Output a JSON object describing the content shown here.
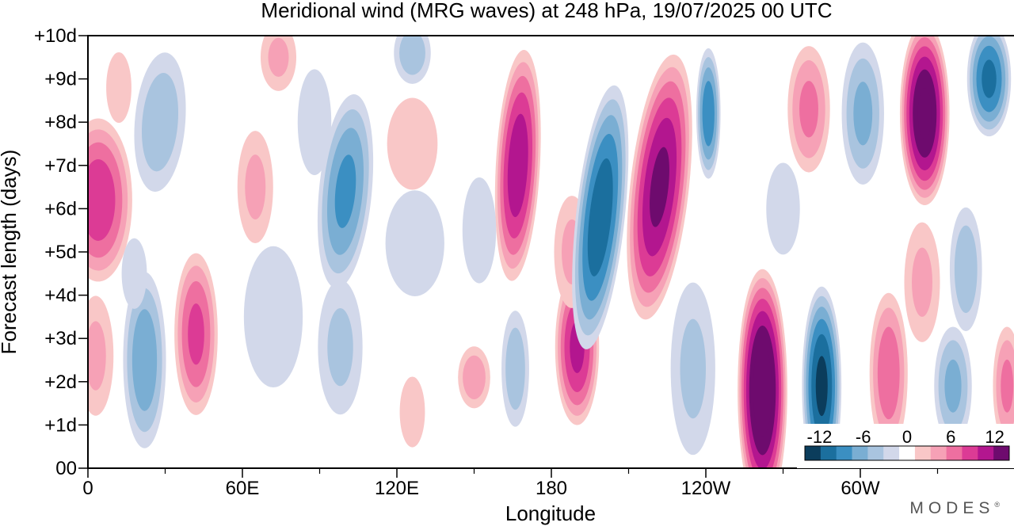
{
  "chart_data": {
    "type": "heatmap",
    "title": "Meridional wind (MRG waves) at  248 hPa,  19/07/2025  00 UTC",
    "xlabel": "Longitude",
    "ylabel": "Forecast length (days)",
    "x_ticks": [
      {
        "lon": 0,
        "label": "0"
      },
      {
        "lon": 60,
        "label": "60E"
      },
      {
        "lon": 120,
        "label": "120E"
      },
      {
        "lon": 180,
        "label": "180"
      },
      {
        "lon": 240,
        "label": "120W"
      },
      {
        "lon": 300,
        "label": "60W"
      }
    ],
    "x_minor_ticks": [
      30,
      90,
      150,
      210,
      270,
      330
    ],
    "xlim": [
      0,
      360
    ],
    "y_ticks": [
      {
        "day": 0,
        "label": "00"
      },
      {
        "day": 1,
        "label": "+1d"
      },
      {
        "day": 2,
        "label": "+2d"
      },
      {
        "day": 3,
        "label": "+3d"
      },
      {
        "day": 4,
        "label": "+4d"
      },
      {
        "day": 5,
        "label": "+5d"
      },
      {
        "day": 6,
        "label": "+6d"
      },
      {
        "day": 7,
        "label": "+7d"
      },
      {
        "day": 8,
        "label": "+8d"
      },
      {
        "day": 9,
        "label": "+9d"
      },
      {
        "day": 10,
        "label": "+10d"
      }
    ],
    "ylim": [
      0,
      10
    ],
    "units": "m/s",
    "colorbar": {
      "levels": [
        -14,
        -12,
        -10,
        -8,
        -6,
        -4,
        -2,
        2,
        4,
        6,
        8,
        10,
        12,
        14
      ],
      "colors": [
        "#0b3d5c",
        "#1b6f9e",
        "#3b8fc2",
        "#7aaed3",
        "#a9c4df",
        "#d2d8ea",
        "#ffffff",
        "#f9c7c7",
        "#f6a1b6",
        "#ee6fa0",
        "#dc3b95",
        "#b3168f",
        "#6e0b6e"
      ],
      "tick_labels": [
        {
          "value": -12,
          "label": "-12"
        },
        {
          "value": -6,
          "label": "-6"
        },
        {
          "value": 0,
          "label": "0"
        },
        {
          "value": 6,
          "label": "6"
        },
        {
          "value": 12,
          "label": "12"
        }
      ]
    },
    "features": [
      {
        "lon": 4,
        "day": 6.2,
        "dlon": 14,
        "dday": 2.0,
        "v": 9,
        "tilt": 0
      },
      {
        "lon": 3,
        "day": 2.6,
        "dlon": 8,
        "dday": 1.6,
        "v": 4,
        "tilt": 0
      },
      {
        "lon": 12,
        "day": 8.8,
        "dlon": 6,
        "dday": 1.0,
        "v": 3,
        "tilt": 0
      },
      {
        "lon": 22,
        "day": 2.5,
        "dlon": 9,
        "dday": 2.2,
        "v": -7,
        "tilt": 0
      },
      {
        "lon": 28,
        "day": 8.0,
        "dlon": 11,
        "dday": 1.8,
        "v": -5,
        "tilt": 4
      },
      {
        "lon": 18,
        "day": 4.5,
        "dlon": 6,
        "dday": 1.0,
        "v": -3,
        "tilt": 0
      },
      {
        "lon": 42,
        "day": 3.1,
        "dlon": 9,
        "dday": 2.0,
        "v": 8,
        "tilt": 0
      },
      {
        "lon": 65,
        "day": 6.5,
        "dlon": 8,
        "dday": 1.5,
        "v": 4,
        "tilt": 0
      },
      {
        "lon": 74,
        "day": 9.5,
        "dlon": 8,
        "dday": 0.9,
        "v": 4,
        "tilt": 0
      },
      {
        "lon": 72,
        "day": 3.5,
        "dlon": 14,
        "dday": 2.0,
        "v": -3,
        "tilt": 0
      },
      {
        "lon": 100,
        "day": 6.4,
        "dlon": 11,
        "dday": 2.4,
        "v": -8,
        "tilt": 5
      },
      {
        "lon": 98,
        "day": 2.8,
        "dlon": 10,
        "dday": 1.8,
        "v": -4,
        "tilt": 0
      },
      {
        "lon": 88,
        "day": 8.0,
        "dlon": 8,
        "dday": 1.5,
        "v": -3,
        "tilt": 0
      },
      {
        "lon": 126,
        "day": 7.5,
        "dlon": 12,
        "dday": 1.3,
        "v": 3,
        "tilt": 0
      },
      {
        "lon": 126,
        "day": 1.3,
        "dlon": 6,
        "dday": 1.0,
        "v": 3,
        "tilt": 0
      },
      {
        "lon": 150,
        "day": 2.1,
        "dlon": 7,
        "dday": 0.8,
        "v": 5,
        "tilt": 0
      },
      {
        "lon": 127,
        "day": 5.2,
        "dlon": 14,
        "dday": 1.5,
        "v": -3,
        "tilt": 0
      },
      {
        "lon": 126,
        "day": 9.6,
        "dlon": 8,
        "dday": 0.8,
        "v": -5,
        "tilt": 0
      },
      {
        "lon": 167,
        "day": 7.0,
        "dlon": 9,
        "dday": 2.8,
        "v": 11,
        "tilt": 3
      },
      {
        "lon": 166,
        "day": 2.3,
        "dlon": 6,
        "dday": 1.5,
        "v": -5,
        "tilt": 0
      },
      {
        "lon": 152,
        "day": 5.5,
        "dlon": 8,
        "dday": 1.5,
        "v": -3,
        "tilt": 0
      },
      {
        "lon": 190,
        "day": 2.8,
        "dlon": 9,
        "dday": 1.9,
        "v": 10,
        "tilt": 0
      },
      {
        "lon": 188,
        "day": 5.0,
        "dlon": 8,
        "dday": 1.5,
        "v": 4,
        "tilt": 0
      },
      {
        "lon": 199,
        "day": 5.8,
        "dlon": 10,
        "dday": 3.2,
        "v": -11,
        "tilt": 6
      },
      {
        "lon": 222,
        "day": 6.5,
        "dlon": 12,
        "dday": 3.2,
        "v": 12,
        "tilt": 6
      },
      {
        "lon": 241,
        "day": 8.2,
        "dlon": 5,
        "dday": 1.6,
        "v": -9,
        "tilt": 0
      },
      {
        "lon": 235,
        "day": 2.3,
        "dlon": 10,
        "dday": 2.3,
        "v": -4,
        "tilt": 0
      },
      {
        "lon": 262,
        "day": 1.8,
        "dlon": 10,
        "dday": 2.9,
        "v": 15,
        "tilt": 0
      },
      {
        "lon": 285,
        "day": 1.9,
        "dlon": 8,
        "dday": 2.4,
        "v": -12,
        "tilt": 0
      },
      {
        "lon": 280,
        "day": 8.3,
        "dlon": 9,
        "dday": 1.6,
        "v": 6,
        "tilt": 0
      },
      {
        "lon": 270,
        "day": 6.0,
        "dlon": 8,
        "dday": 1.3,
        "v": -3,
        "tilt": 0
      },
      {
        "lon": 301,
        "day": 8.2,
        "dlon": 9,
        "dday": 1.8,
        "v": -6,
        "tilt": 0
      },
      {
        "lon": 311,
        "day": 2.2,
        "dlon": 8,
        "dday": 2.0,
        "v": 7,
        "tilt": 0
      },
      {
        "lon": 325,
        "day": 8.2,
        "dlon": 10,
        "dday": 2.2,
        "v": 14,
        "tilt": 0
      },
      {
        "lon": 324,
        "day": 4.3,
        "dlon": 8,
        "dday": 1.6,
        "v": 4,
        "tilt": 0
      },
      {
        "lon": 341,
        "day": 4.6,
        "dlon": 7,
        "dday": 1.6,
        "v": -5,
        "tilt": 0
      },
      {
        "lon": 336,
        "day": 1.9,
        "dlon": 8,
        "dday": 1.5,
        "v": -6,
        "tilt": 0
      },
      {
        "lon": 350,
        "day": 9.0,
        "dlon": 9,
        "dday": 1.4,
        "v": -10,
        "tilt": 0
      },
      {
        "lon": 357,
        "day": 1.9,
        "dlon": 6,
        "dday": 1.5,
        "v": 6,
        "tilt": 0
      }
    ]
  },
  "logo": {
    "text": "MODES",
    "mark": "®"
  }
}
